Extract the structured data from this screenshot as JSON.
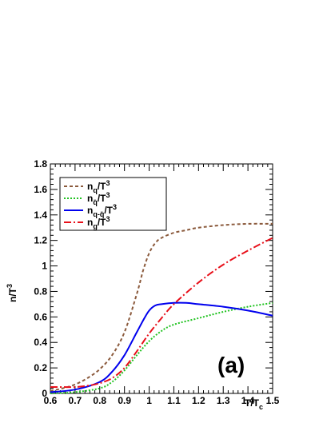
{
  "chart_data": {
    "type": "line",
    "title": "",
    "xlabel": {
      "main": "T/T",
      "sub": "c"
    },
    "ylabel": {
      "main": "n/T",
      "sup": "3"
    },
    "xlim": [
      0.6,
      1.5
    ],
    "ylim": [
      0,
      1.8
    ],
    "x_ticks": [
      "0.6",
      "0.7",
      "0.8",
      "0.9",
      "1",
      "1.1",
      "1.2",
      "1.3",
      "1.4",
      "1.5"
    ],
    "y_ticks": [
      "0",
      "0.2",
      "0.4",
      "0.6",
      "0.8",
      "1",
      "1.2",
      "1.4",
      "1.6",
      "1.8"
    ],
    "panel_label": "(a)",
    "grid": false,
    "legend_position": "top-left",
    "series": [
      {
        "legend": {
          "base": "n",
          "sub": "q",
          "tail": "/T",
          "sup": "3"
        },
        "color": "#8B5A3C",
        "dash": "dashed",
        "x": [
          0.6,
          0.65,
          0.7,
          0.75,
          0.8,
          0.85,
          0.9,
          0.95,
          0.975,
          1.0,
          1.025,
          1.05,
          1.1,
          1.15,
          1.2,
          1.3,
          1.4,
          1.5
        ],
        "y": [
          0.02,
          0.04,
          0.07,
          0.12,
          0.19,
          0.3,
          0.48,
          0.78,
          0.96,
          1.1,
          1.18,
          1.22,
          1.26,
          1.28,
          1.3,
          1.32,
          1.33,
          1.33
        ]
      },
      {
        "legend": {
          "base": "n",
          "sub": "q̄",
          "tail": "/T",
          "sup": "3"
        },
        "color": "#22C322",
        "dash": "dotted",
        "x": [
          0.6,
          0.7,
          0.8,
          0.85,
          0.9,
          0.95,
          1.0,
          1.05,
          1.1,
          1.2,
          1.3,
          1.4,
          1.5
        ],
        "y": [
          0.0,
          0.01,
          0.04,
          0.09,
          0.18,
          0.3,
          0.41,
          0.49,
          0.54,
          0.59,
          0.64,
          0.68,
          0.71
        ]
      },
      {
        "legend": {
          "base": "n",
          "sub": "q-q̄",
          "tail": "/T",
          "sup": "3"
        },
        "color": "#0000EE",
        "dash": "solid",
        "x": [
          0.6,
          0.7,
          0.8,
          0.85,
          0.9,
          0.95,
          0.975,
          1.0,
          1.025,
          1.05,
          1.1,
          1.15,
          1.2,
          1.3,
          1.4,
          1.5
        ],
        "y": [
          0.01,
          0.03,
          0.09,
          0.17,
          0.3,
          0.48,
          0.57,
          0.65,
          0.69,
          0.7,
          0.71,
          0.71,
          0.7,
          0.68,
          0.65,
          0.61
        ]
      },
      {
        "legend": {
          "base": "n",
          "sub": "g",
          "tail": "/T",
          "sup": "3"
        },
        "color": "#E8101A",
        "dash": "dashdot",
        "x": [
          0.6,
          0.65,
          0.7,
          0.75,
          0.8,
          0.85,
          0.9,
          0.95,
          1.0,
          1.05,
          1.1,
          1.2,
          1.3,
          1.4,
          1.5
        ],
        "y": [
          0.05,
          0.05,
          0.05,
          0.06,
          0.08,
          0.12,
          0.2,
          0.33,
          0.47,
          0.59,
          0.7,
          0.87,
          1.01,
          1.12,
          1.22
        ]
      }
    ]
  }
}
